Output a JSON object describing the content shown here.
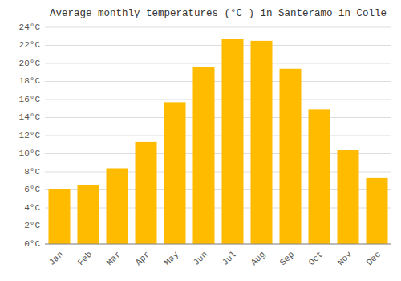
{
  "chart_data": {
    "type": "bar",
    "title": "Average monthly temperatures (°C ) in Santeramo in Colle",
    "categories": [
      "Jan",
      "Feb",
      "Mar",
      "Apr",
      "May",
      "Jun",
      "Jul",
      "Aug",
      "Sep",
      "Oct",
      "Nov",
      "Dec"
    ],
    "values": [
      6.1,
      6.5,
      8.4,
      11.3,
      15.7,
      19.6,
      22.7,
      22.5,
      19.4,
      14.9,
      10.4,
      7.3
    ],
    "color": "#FFBB00",
    "ylim": [
      0,
      24
    ],
    "yticks": [
      {
        "value": 0,
        "label": "0°C"
      },
      {
        "value": 2,
        "label": "2°C"
      },
      {
        "value": 4,
        "label": "4°C"
      },
      {
        "value": 6,
        "label": "6°C"
      },
      {
        "value": 8,
        "label": "8°C"
      },
      {
        "value": 10,
        "label": "10°C"
      },
      {
        "value": 12,
        "label": "12°C"
      },
      {
        "value": 14,
        "label": "14°C"
      },
      {
        "value": 16,
        "label": "16°C"
      },
      {
        "value": 18,
        "label": "18°C"
      },
      {
        "value": 20,
        "label": "20°C"
      },
      {
        "value": 22,
        "label": "22°C"
      },
      {
        "value": 24,
        "label": "24°C"
      }
    ],
    "grid": true
  }
}
